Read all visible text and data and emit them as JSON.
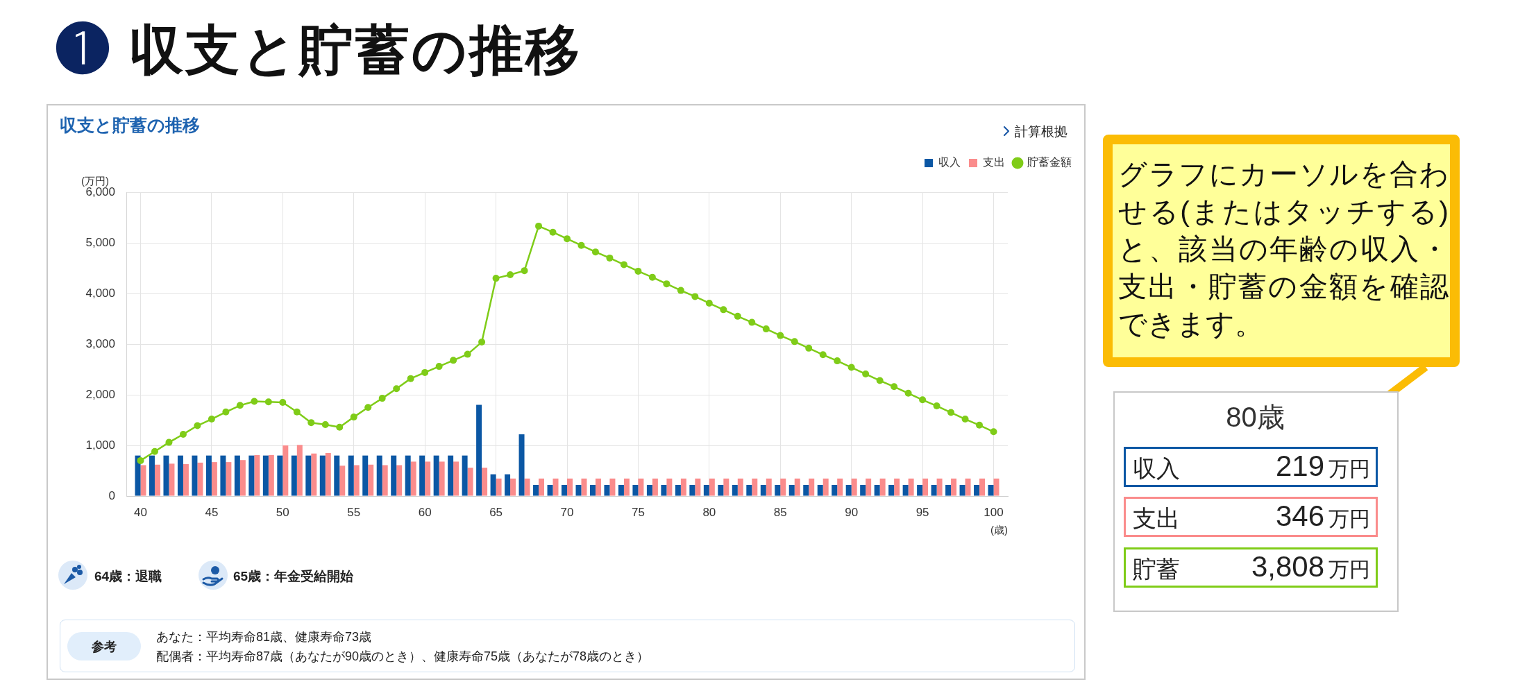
{
  "chart_data": {
    "type": "bar",
    "title": "❶ 収支と貯蓄の推移",
    "subtitle": "収支と貯蓄の推移",
    "xlabel": "(歳)",
    "ylabel": "(万円)",
    "x": [
      40,
      41,
      42,
      43,
      44,
      45,
      46,
      47,
      48,
      49,
      50,
      51,
      52,
      53,
      54,
      55,
      56,
      57,
      58,
      59,
      60,
      61,
      62,
      63,
      64,
      65,
      66,
      67,
      68,
      69,
      70,
      71,
      72,
      73,
      74,
      75,
      76,
      77,
      78,
      79,
      80,
      81,
      82,
      83,
      84,
      85,
      86,
      87,
      88,
      89,
      90,
      91,
      92,
      93,
      94,
      95,
      96,
      97,
      98,
      99,
      100
    ],
    "series": [
      {
        "name": "収入",
        "color": "#0b57a4",
        "values": [
          800,
          800,
          800,
          800,
          800,
          800,
          800,
          800,
          800,
          800,
          800,
          800,
          800,
          800,
          800,
          800,
          800,
          800,
          800,
          800,
          800,
          800,
          800,
          800,
          1800,
          430,
          430,
          1220,
          219,
          219,
          219,
          219,
          219,
          219,
          219,
          219,
          219,
          219,
          219,
          219,
          219,
          219,
          219,
          219,
          219,
          219,
          219,
          219,
          219,
          219,
          219,
          219,
          219,
          219,
          219,
          219,
          219,
          219,
          219,
          219,
          219
        ]
      },
      {
        "name": "支出",
        "color": "#fa8c8c",
        "values": [
          610,
          620,
          640,
          630,
          660,
          670,
          670,
          710,
          810,
          810,
          1000,
          1010,
          840,
          850,
          600,
          610,
          620,
          610,
          610,
          680,
          680,
          680,
          680,
          560,
          560,
          346,
          346,
          346,
          346,
          346,
          346,
          346,
          346,
          346,
          346,
          346,
          346,
          346,
          346,
          346,
          346,
          346,
          346,
          346,
          346,
          346,
          346,
          346,
          346,
          346,
          346,
          346,
          346,
          346,
          346,
          346,
          346,
          346,
          346,
          346,
          346
        ]
      },
      {
        "name": "貯蓄金額",
        "color": "#7fcc18",
        "type": "line",
        "values": [
          700,
          880,
          1060,
          1220,
          1390,
          1520,
          1660,
          1790,
          1870,
          1860,
          1850,
          1660,
          1450,
          1410,
          1360,
          1560,
          1750,
          1930,
          2120,
          2320,
          2440,
          2560,
          2680,
          2800,
          3040,
          4300,
          4370,
          4450,
          5330,
          5210,
          5080,
          4950,
          4820,
          4700,
          4570,
          4440,
          4320,
          4190,
          4060,
          3940,
          3808,
          3680,
          3550,
          3430,
          3300,
          3170,
          3050,
          2920,
          2790,
          2670,
          2540,
          2410,
          2280,
          2160,
          2030,
          1900,
          1780,
          1650,
          1520,
          1400,
          1270
        ]
      }
    ],
    "xlim": [
      39,
      101
    ],
    "xticks": [
      40,
      45,
      50,
      55,
      60,
      65,
      70,
      75,
      80,
      85,
      90,
      95,
      100
    ],
    "ylim": [
      0,
      6000
    ],
    "yticks": [
      0,
      {
        "value": 1000,
        "label": "1,000"
      },
      {
        "value": 2000,
        "label": "2,000"
      },
      {
        "value": 3000,
        "label": "3,000"
      },
      {
        "value": 4000,
        "label": "4,000"
      },
      {
        "value": 5000,
        "label": "5,000"
      },
      {
        "value": 6000,
        "label": "6,000"
      }
    ],
    "grid": true,
    "legend": "top right",
    "marker": "circle",
    "annotations": [
      "計算根拠",
      "64歳：退職",
      "65歳：年金受給開始",
      "参考",
      "あなた：平均寿命81歳、健康寿命73歳",
      "配偶者：平均寿命87歳（あなたが90歳のとき）、健康寿命75歳（あなたが78歳のとき）",
      "グラフにカーソルを合わせる(またはタッチする)と、該当の年齢の収入・支出・貯蓄の金額を確認できます。",
      "80歳",
      "収入",
      "219",
      "万円",
      "支出",
      "346",
      "万円",
      "貯蓄",
      "3,808",
      "万円"
    ]
  }
}
